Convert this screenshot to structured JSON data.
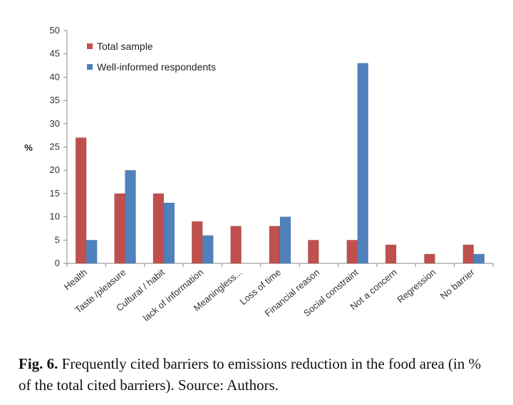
{
  "chart_data": {
    "type": "bar",
    "ylabel": "%",
    "ylim": [
      0,
      50
    ],
    "ytick_step": 5,
    "grid": false,
    "legend_position": "top-left",
    "categories": [
      "Health",
      "Taste /pleasure",
      "Cultural / habit",
      "lack of information",
      "Meaningless...",
      "Loss of time",
      "Financial reason",
      "Social constraint",
      "Not a concern",
      "Regression",
      "No barrier"
    ],
    "series": [
      {
        "name": "Total sample",
        "color": "#C0504D",
        "values": [
          27,
          15,
          15,
          9,
          8,
          8,
          5,
          5,
          4,
          2,
          4
        ]
      },
      {
        "name": "Well-informed respondents",
        "color": "#4F81BD",
        "values": [
          5,
          20,
          13,
          6,
          0,
          10,
          0,
          43,
          0,
          0,
          2
        ]
      }
    ]
  },
  "caption": {
    "label": "Fig. 6.",
    "text": " Frequently cited barriers to emissions reduction in the food area (in % of the total cited barriers). Source: Authors."
  }
}
